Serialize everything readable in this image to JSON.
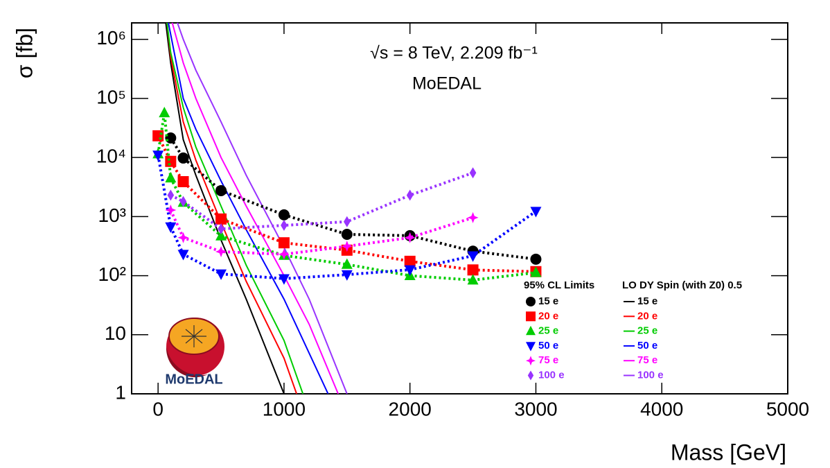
{
  "chart_data": {
    "type": "line",
    "title": "√s = 8 TeV, 2.209 fb⁻¹",
    "subtitle": "MoEDAL",
    "logo_text": "MoEDAL",
    "x_label": "Mass [GeV]",
    "y_label": "σ [fb]",
    "xlim": [
      -210,
      5000
    ],
    "xticks": [
      0,
      1000,
      2000,
      3000,
      4000,
      5000
    ],
    "ylim": [
      1,
      1900000
    ],
    "log_y": true,
    "yticks": [
      1,
      10,
      {
        "value": 100,
        "label": "10²"
      },
      {
        "value": 1000,
        "label": "10³"
      },
      {
        "value": 10000,
        "label": "10⁴"
      },
      {
        "value": 100000,
        "label": "10⁵"
      },
      {
        "value": 1000000,
        "label": "10⁶"
      }
    ],
    "legend_titles": [
      "95% CL Limits",
      "LO DY Spin (with Z0) 0.5"
    ],
    "series": [
      {
        "name": "15 e",
        "color": "#000000",
        "line_style": "dotted",
        "marker": "circle",
        "x": [
          100,
          200,
          500,
          1000,
          1500,
          2000,
          2500,
          3000
        ],
        "values": [
          21400,
          9800,
          2750,
          1070,
          500,
          475,
          260,
          190
        ]
      },
      {
        "name": "20 e",
        "color": "#ff0000",
        "line_style": "dotted",
        "marker": "square",
        "x": [
          0,
          100,
          200,
          500,
          1000,
          1500,
          2000,
          2500,
          3000
        ],
        "values": [
          23300,
          8600,
          3900,
          910,
          360,
          270,
          175,
          125,
          117
        ]
      },
      {
        "name": "25 e",
        "color": "#00cc00",
        "line_style": "dotted",
        "marker": "triangle-up",
        "x": [
          0,
          50,
          100,
          200,
          500,
          1000,
          1500,
          2000,
          2500,
          3000
        ],
        "values": [
          11500,
          57000,
          4500,
          1740,
          470,
          220,
          155,
          100,
          84,
          113
        ]
      },
      {
        "name": "50 e",
        "color": "#0000ff",
        "line_style": "dotted",
        "marker": "triangle-down",
        "x": [
          0,
          100,
          200,
          500,
          1000,
          1500,
          2000,
          2500,
          3000
        ],
        "values": [
          11000,
          670,
          230,
          107,
          89,
          104,
          126,
          217,
          1230
        ]
      },
      {
        "name": "75 e",
        "color": "#ff00ff",
        "line_style": "dotted",
        "marker": "star",
        "x": [
          100,
          200,
          500,
          1000,
          1500,
          2000,
          2500
        ],
        "values": [
          1290,
          440,
          255,
          230,
          315,
          440,
          960
        ]
      },
      {
        "name": "100 e",
        "color": "#9933ff",
        "line_style": "dotted",
        "marker": "diamond",
        "x": [
          100,
          200,
          500,
          1000,
          1500,
          2000,
          2500
        ],
        "values": [
          2300,
          1800,
          620,
          710,
          820,
          2300,
          5500
        ]
      },
      {
        "name": "15 e",
        "color": "#000000",
        "line_style": "solid",
        "x": [
          60,
          100,
          200,
          300,
          500,
          700,
          1000
        ],
        "values": [
          2000000,
          400000,
          20000,
          5000,
          400,
          40,
          1
        ]
      },
      {
        "name": "20 e",
        "color": "#ff0000",
        "line_style": "solid",
        "x": [
          70,
          100,
          200,
          300,
          500,
          700,
          1000,
          1100
        ],
        "values": [
          2000000,
          500000,
          40000,
          9000,
          800,
          80,
          4,
          1
        ]
      },
      {
        "name": "25 e",
        "color": "#00cc00",
        "line_style": "solid",
        "x": [
          70,
          100,
          200,
          300,
          500,
          700,
          1000,
          1150
        ],
        "values": [
          2000000,
          600000,
          70000,
          15000,
          1500,
          150,
          8,
          1
        ]
      },
      {
        "name": "50 e",
        "color": "#0000ff",
        "line_style": "solid",
        "x": [
          80,
          200,
          300,
          500,
          700,
          1000,
          1350
        ],
        "values": [
          2000000,
          100000,
          30000,
          4000,
          600,
          40,
          1
        ]
      },
      {
        "name": "75 e",
        "color": "#ff00ff",
        "line_style": "solid",
        "x": [
          110,
          200,
          300,
          500,
          700,
          1000,
          1200,
          1430
        ],
        "values": [
          2000000,
          400000,
          100000,
          10000,
          1500,
          100,
          15,
          1
        ]
      },
      {
        "name": "100 e",
        "color": "#9933ff",
        "line_style": "solid",
        "x": [
          150,
          200,
          300,
          500,
          700,
          1000,
          1200,
          1500
        ],
        "values": [
          2000000,
          1000000,
          300000,
          40000,
          5000,
          300,
          40,
          1
        ]
      }
    ]
  }
}
